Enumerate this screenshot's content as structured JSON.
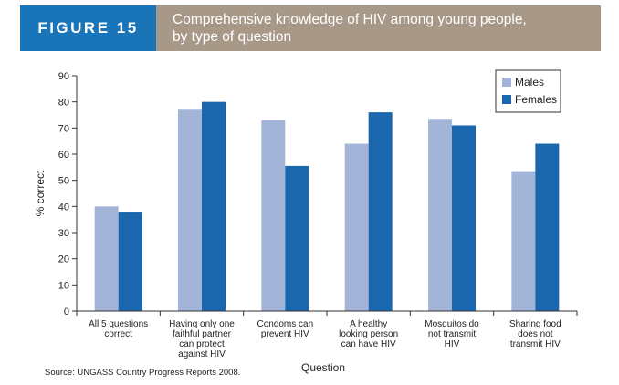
{
  "figure": {
    "label": "FIGURE 15",
    "title_lines": [
      "Comprehensive knowledge of HIV among young people,",
      "by type of question"
    ]
  },
  "source": "Source: UNGASS Country Progress Reports 2008.",
  "colors": {
    "banner_label": "#1a74b8",
    "banner_title": "#a89888"
  },
  "chart_data": {
    "type": "bar",
    "categories": [
      [
        "All 5 questions",
        "correct"
      ],
      [
        "Having only one",
        "faithful partner",
        "can protect",
        "against HIV"
      ],
      [
        "Condoms can",
        "prevent HIV"
      ],
      [
        "A healthy",
        "looking person",
        "can have HIV"
      ],
      [
        "Mosquitos do",
        "not transmit",
        "HIV"
      ],
      [
        "Sharing food",
        "does not",
        "transmit HIV"
      ]
    ],
    "series": [
      {
        "name": "Males",
        "color": "#a3b4d9",
        "values": [
          40,
          77,
          73,
          64,
          73.5,
          53.5
        ]
      },
      {
        "name": "Females",
        "color": "#1a67ae",
        "values": [
          38,
          80,
          55.5,
          76,
          71,
          64
        ]
      }
    ],
    "xlabel": "Question",
    "ylabel": "% correct",
    "ylim": [
      0,
      90
    ],
    "yticks": [
      0,
      10,
      20,
      30,
      40,
      50,
      60,
      70,
      80,
      90
    ],
    "legend": "top-right",
    "grid": false
  }
}
